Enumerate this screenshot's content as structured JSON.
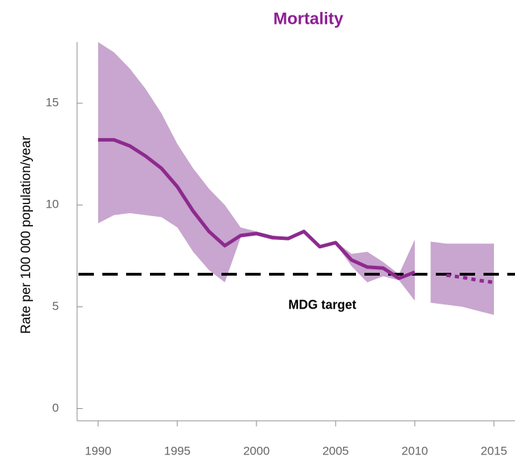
{
  "chart_data": {
    "type": "line",
    "title": "Mortality",
    "y_label": "Rate per 100 000 population/year",
    "xlim": [
      1988.67,
      2016.33
    ],
    "ylim": [
      -0.6,
      18
    ],
    "xticks": [
      1990,
      1995,
      2000,
      2005,
      2010,
      2015
    ],
    "yticks": [
      0,
      5,
      10,
      15
    ],
    "series": [
      {
        "color": "#8e2a8e",
        "style": "solid",
        "x": [
          1990,
          1991,
          1992,
          1993,
          1994,
          1995,
          1996,
          1997,
          1998,
          1999,
          2000,
          2001,
          2002,
          2003,
          2004,
          2005,
          2006,
          2007,
          2008,
          2009,
          2010
        ],
        "values": [
          13.2,
          13.2,
          12.9,
          12.4,
          11.8,
          10.9,
          9.7,
          8.7,
          8.0,
          8.5,
          8.6,
          8.4,
          8.35,
          8.7,
          7.95,
          8.15,
          7.3,
          6.95,
          6.9,
          6.4,
          6.7
        ]
      },
      {
        "color": "#8e2a8e",
        "style": "dotted",
        "x": [
          2012,
          2013,
          2014,
          2015
        ],
        "values": [
          6.55,
          6.45,
          6.3,
          6.2
        ]
      }
    ],
    "bands": [
      {
        "color": "#c8a6cf",
        "x": [
          1990,
          1991,
          1992,
          1993,
          1994,
          1995,
          1996,
          1997,
          1998,
          1999,
          2000,
          2001,
          2002,
          2003,
          2004,
          2005,
          2006,
          2007,
          2008,
          2009,
          2010
        ],
        "upper": [
          18.0,
          17.5,
          16.7,
          15.7,
          14.5,
          13.0,
          11.8,
          10.8,
          10.0,
          8.9,
          8.7,
          8.5,
          8.4,
          8.8,
          8.0,
          8.2,
          7.6,
          7.7,
          7.2,
          6.6,
          8.3
        ],
        "lower": [
          9.1,
          9.5,
          9.6,
          9.5,
          9.4,
          8.9,
          7.7,
          6.8,
          6.2,
          8.4,
          8.5,
          8.3,
          8.3,
          8.6,
          7.9,
          8.1,
          7.0,
          6.2,
          6.5,
          6.3,
          5.3
        ]
      },
      {
        "color": "#c8a6cf",
        "x": [
          2011,
          2012,
          2013,
          2014,
          2015
        ],
        "upper": [
          8.2,
          8.1,
          8.1,
          8.1,
          8.1
        ],
        "lower": [
          5.2,
          5.1,
          5.0,
          4.8,
          4.6
        ]
      }
    ],
    "target": {
      "text": "MDG target",
      "value": 6.6
    }
  }
}
